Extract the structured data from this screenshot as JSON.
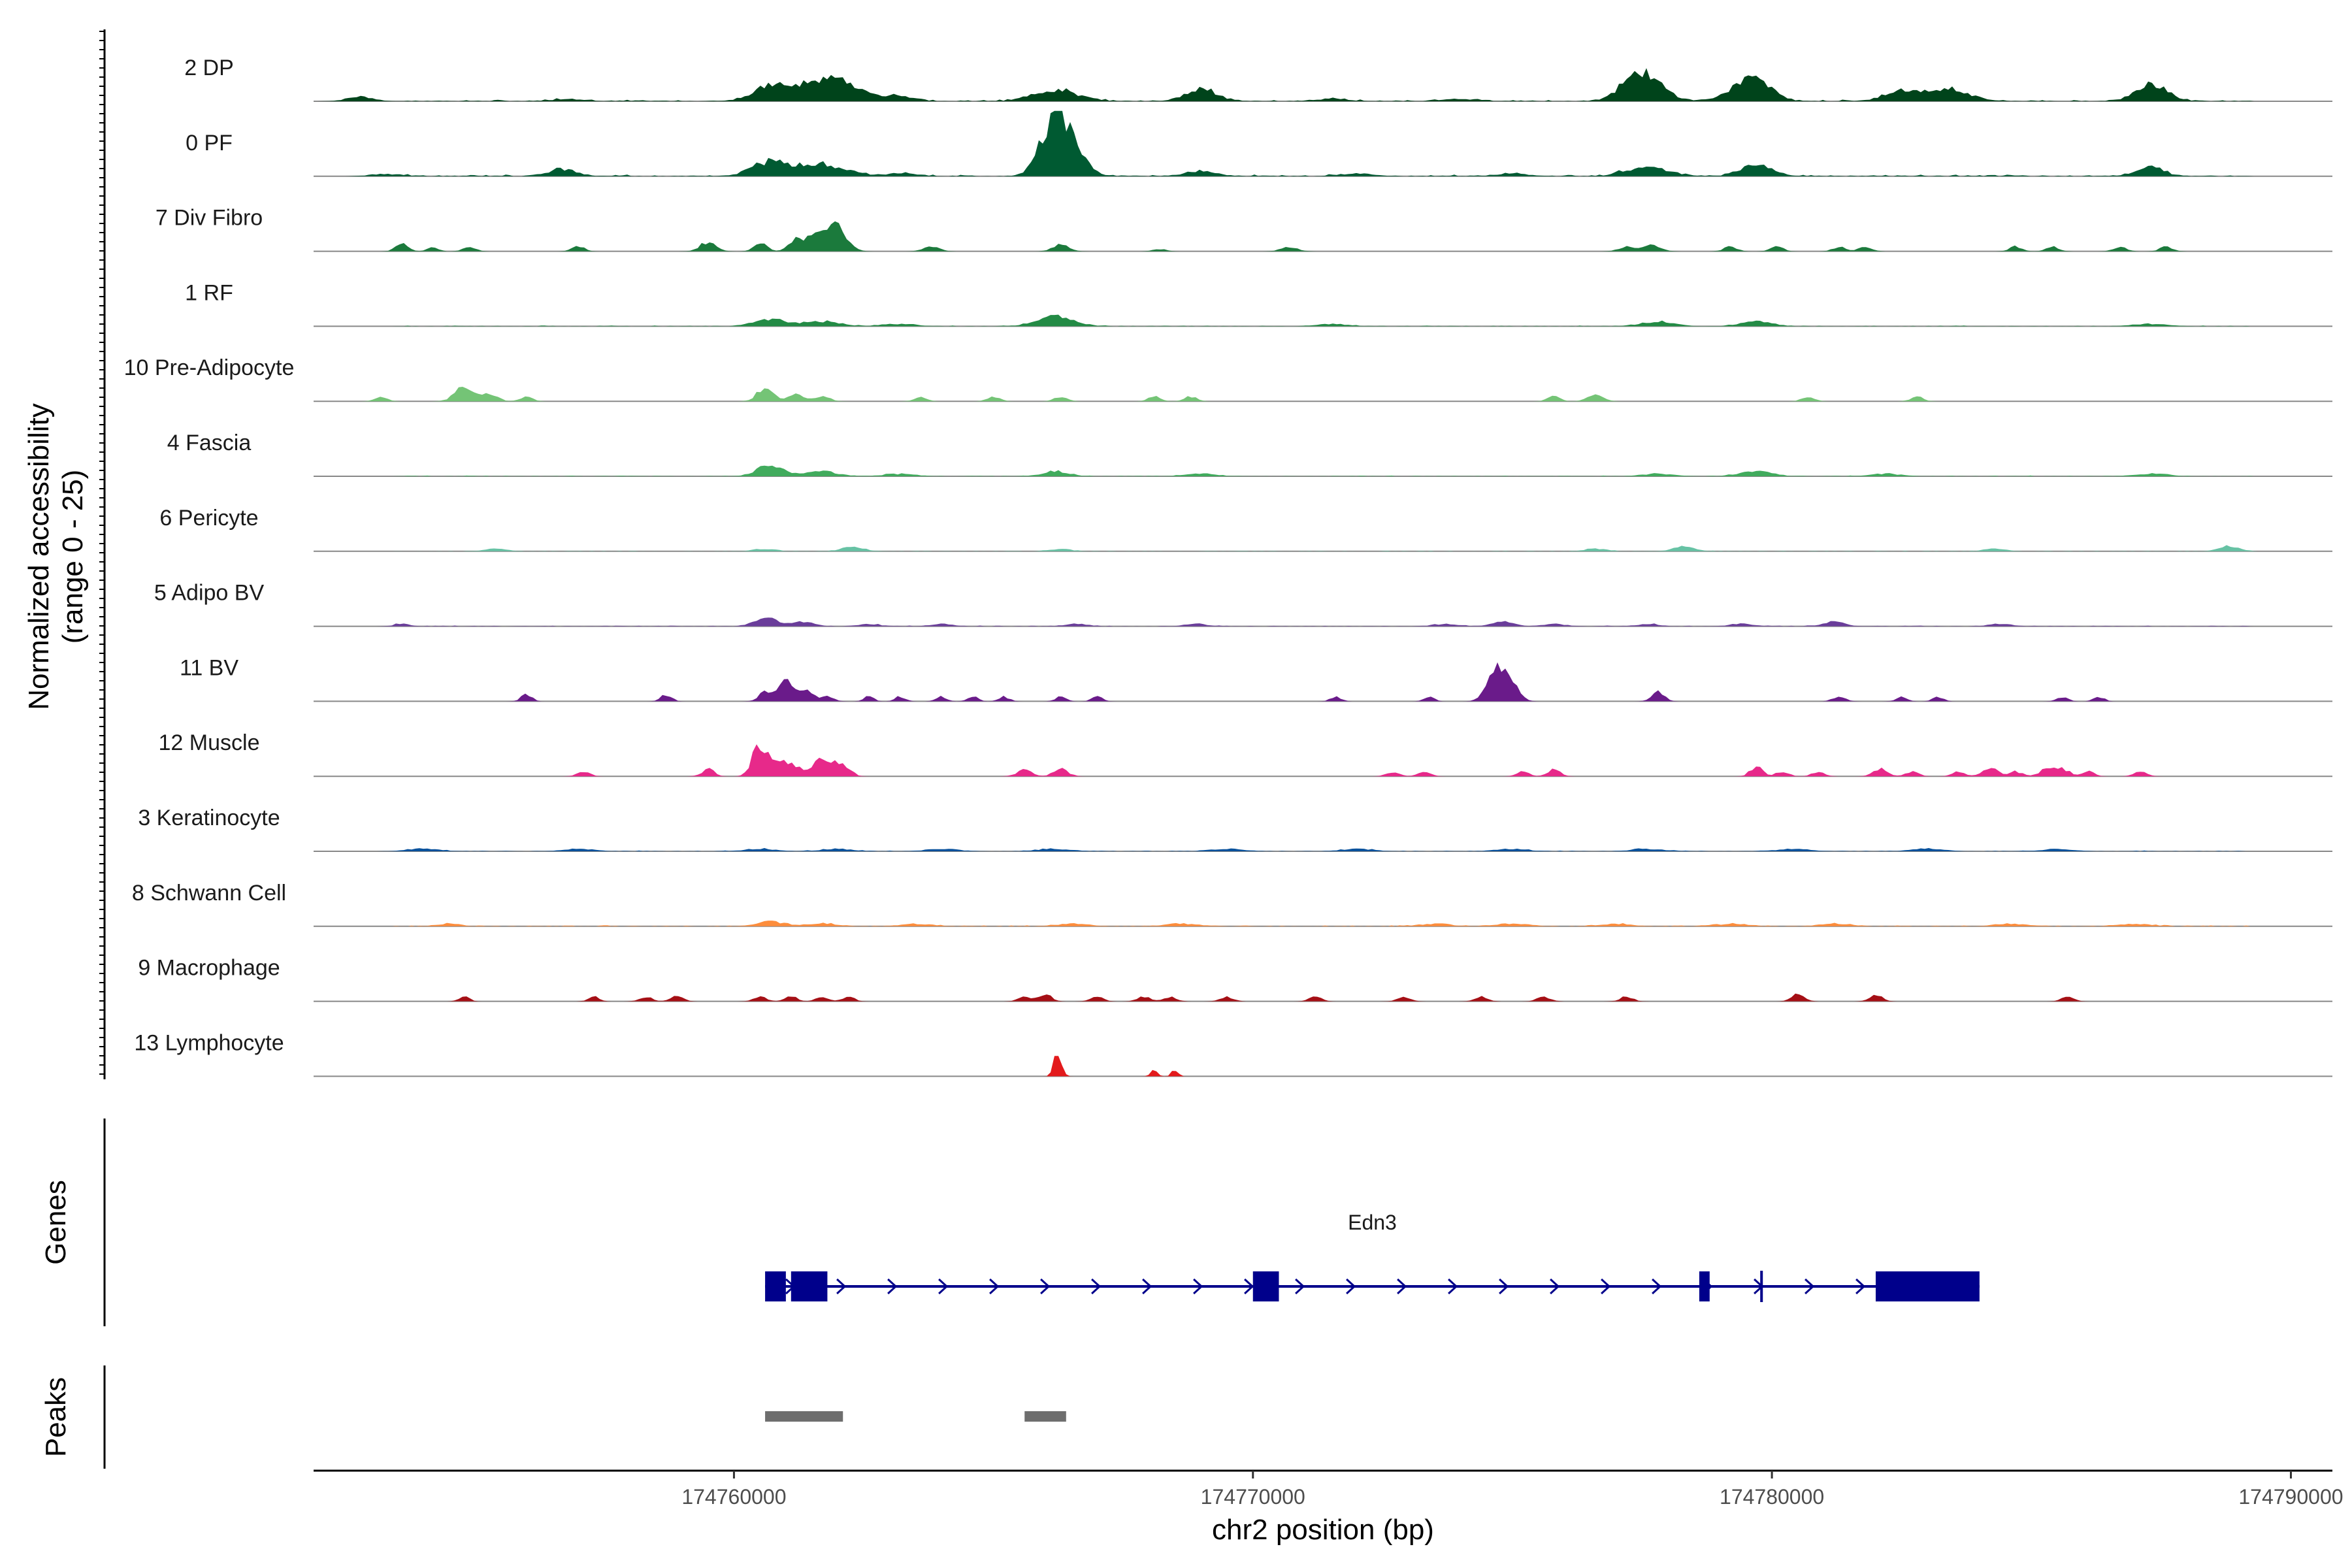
{
  "chart_data": {
    "type": "area",
    "title": "",
    "ylabel": "Normalized accessibility",
    "ylabel_range": "(range 0 - 25)",
    "ylim": [
      0,
      25
    ],
    "xlabel": "chr2 position (bp)",
    "xlim": [
      174751900,
      174790800
    ],
    "xticks": [
      174760000,
      174770000,
      174780000,
      174790000
    ],
    "xtick_labels": [
      "174760000",
      "174770000",
      "174780000",
      "174790000"
    ],
    "tracks": [
      {
        "name": "2 DP",
        "color": "#00441b",
        "peaks": [
          [
            174752800,
            2,
            250
          ],
          [
            174756800,
            1,
            300
          ],
          [
            174760700,
            6,
            350
          ],
          [
            174761700,
            8,
            450
          ],
          [
            174762200,
            4,
            400
          ],
          [
            174763200,
            2,
            300
          ],
          [
            174766200,
            5,
            400
          ],
          [
            174769000,
            5,
            300
          ],
          [
            174771500,
            1,
            300
          ],
          [
            174774000,
            1,
            300
          ],
          [
            174777400,
            11,
            300
          ],
          [
            174777800,
            4,
            300
          ],
          [
            174779600,
            10,
            350
          ],
          [
            174782500,
            4,
            350
          ],
          [
            174783400,
            5,
            400
          ],
          [
            174787300,
            7,
            300
          ]
        ],
        "noise": 0.7
      },
      {
        "name": "0 PF",
        "color": "#005a32",
        "peaks": [
          [
            174753300,
            1,
            300
          ],
          [
            174756700,
            3,
            250
          ],
          [
            174760700,
            6,
            350
          ],
          [
            174761700,
            5,
            450
          ],
          [
            174763200,
            1,
            300
          ],
          [
            174766100,
            14,
            250
          ],
          [
            174766400,
            18,
            280
          ],
          [
            174769000,
            2,
            300
          ],
          [
            174772000,
            1,
            300
          ],
          [
            174775000,
            1,
            300
          ],
          [
            174777300,
            2,
            300
          ],
          [
            174777800,
            3,
            300
          ],
          [
            174779700,
            5,
            300
          ],
          [
            174787300,
            4,
            250
          ]
        ],
        "noise": 0.8
      },
      {
        "name": "7 Div Fibro",
        "color": "#1b7a3c",
        "peaks": [
          [
            174753600,
            3,
            120
          ],
          [
            174754200,
            2,
            100
          ],
          [
            174754900,
            2,
            120
          ],
          [
            174757000,
            2,
            120
          ],
          [
            174759500,
            4,
            150
          ],
          [
            174760500,
            4,
            120
          ],
          [
            174761200,
            5,
            150
          ],
          [
            174761600,
            6,
            200
          ],
          [
            174762000,
            10,
            180
          ],
          [
            174763800,
            2,
            150
          ],
          [
            174766300,
            3,
            150
          ],
          [
            174768200,
            1,
            120
          ],
          [
            174770700,
            2,
            150
          ],
          [
            174777200,
            2,
            150
          ],
          [
            174777700,
            3,
            150
          ],
          [
            174779200,
            2,
            120
          ],
          [
            174780100,
            2,
            120
          ],
          [
            174781300,
            2,
            120
          ],
          [
            174781800,
            2,
            120
          ],
          [
            174784700,
            2,
            120
          ],
          [
            174785400,
            2,
            120
          ],
          [
            174786700,
            2,
            120
          ],
          [
            174787600,
            2,
            120
          ]
        ],
        "noise": 0.0
      },
      {
        "name": "1 RF",
        "color": "#238b45",
        "peaks": [
          [
            174760700,
            3,
            300
          ],
          [
            174761700,
            2,
            350
          ],
          [
            174763200,
            1,
            300
          ],
          [
            174766200,
            4,
            350
          ],
          [
            174771500,
            1,
            300
          ],
          [
            174777800,
            2,
            300
          ],
          [
            174779700,
            2,
            300
          ],
          [
            174787300,
            1,
            300
          ]
        ],
        "noise": 0.35
      },
      {
        "name": "10 Pre-Adipocyte",
        "color": "#74c476",
        "peaks": [
          [
            174753200,
            2,
            120
          ],
          [
            174754800,
            6,
            180
          ],
          [
            174755300,
            3,
            150
          ],
          [
            174756000,
            2,
            120
          ],
          [
            174760600,
            6,
            150
          ],
          [
            174761200,
            3,
            150
          ],
          [
            174761700,
            2,
            150
          ],
          [
            174763600,
            2,
            120
          ],
          [
            174765000,
            2,
            120
          ],
          [
            174766300,
            2,
            120
          ],
          [
            174768100,
            2,
            120
          ],
          [
            174768800,
            2,
            120
          ],
          [
            174775800,
            2,
            120
          ],
          [
            174776600,
            3,
            150
          ],
          [
            174780700,
            2,
            120
          ],
          [
            174782800,
            2,
            120
          ]
        ],
        "noise": 0.0
      },
      {
        "name": "4 Fascia",
        "color": "#41ab5d",
        "peaks": [
          [
            174760700,
            5,
            250
          ],
          [
            174761700,
            2,
            300
          ],
          [
            174763200,
            1,
            300
          ],
          [
            174766200,
            2,
            250
          ],
          [
            174769000,
            1,
            300
          ],
          [
            174777800,
            1,
            300
          ],
          [
            174779700,
            2,
            300
          ],
          [
            174782200,
            1,
            300
          ],
          [
            174787300,
            1,
            300
          ]
        ],
        "noise": 0.35
      },
      {
        "name": "6 Pericyte",
        "color": "#66c2a4",
        "peaks": [
          [
            174755400,
            1,
            200
          ],
          [
            174760600,
            1,
            200
          ],
          [
            174762300,
            2,
            200
          ],
          [
            174766300,
            1,
            200
          ],
          [
            174776600,
            1,
            200
          ],
          [
            174778300,
            2,
            200
          ],
          [
            174784300,
            1,
            200
          ],
          [
            174788800,
            2,
            200
          ]
        ],
        "noise": 0.25
      },
      {
        "name": "5 Adipo BV",
        "color": "#6a3d9a",
        "peaks": [
          [
            174753600,
            1,
            150
          ],
          [
            174760600,
            4,
            200
          ],
          [
            174761300,
            2,
            200
          ],
          [
            174762600,
            1,
            200
          ],
          [
            174764000,
            1,
            200
          ],
          [
            174766600,
            1,
            200
          ],
          [
            174768900,
            1,
            200
          ],
          [
            174773700,
            1,
            200
          ],
          [
            174774800,
            2,
            200
          ],
          [
            174775800,
            1,
            200
          ],
          [
            174777600,
            1,
            200
          ],
          [
            174779400,
            1,
            200
          ],
          [
            174781200,
            2,
            200
          ],
          [
            174784400,
            1,
            200
          ]
        ],
        "noise": 0.35
      },
      {
        "name": "11 BV",
        "color": "#6a1b8a",
        "peaks": [
          [
            174756000,
            3,
            100
          ],
          [
            174758700,
            3,
            100
          ],
          [
            174760600,
            4,
            120
          ],
          [
            174761000,
            8,
            160
          ],
          [
            174761400,
            4,
            140
          ],
          [
            174761800,
            2,
            120
          ],
          [
            174762600,
            2,
            100
          ],
          [
            174763200,
            2,
            100
          ],
          [
            174764000,
            2,
            100
          ],
          [
            174764600,
            2,
            100
          ],
          [
            174765200,
            2,
            100
          ],
          [
            174766300,
            2,
            100
          ],
          [
            174767000,
            2,
            100
          ],
          [
            174771600,
            2,
            100
          ],
          [
            174773400,
            2,
            100
          ],
          [
            174774700,
            13,
            180
          ],
          [
            174775000,
            6,
            150
          ],
          [
            174777800,
            4,
            120
          ],
          [
            174781300,
            2,
            120
          ],
          [
            174782500,
            2,
            100
          ],
          [
            174783200,
            2,
            100
          ],
          [
            174785600,
            2,
            100
          ],
          [
            174786300,
            2,
            100
          ]
        ],
        "noise": 0.0
      },
      {
        "name": "12 Muscle",
        "color": "#e7298a",
        "peaks": [
          [
            174757100,
            2,
            120
          ],
          [
            174759500,
            3,
            120
          ],
          [
            174760500,
            14,
            140
          ],
          [
            174760900,
            6,
            160
          ],
          [
            174761200,
            3,
            120
          ],
          [
            174761700,
            7,
            200
          ],
          [
            174762100,
            4,
            150
          ],
          [
            174765600,
            3,
            140
          ],
          [
            174766300,
            3,
            140
          ],
          [
            174772700,
            2,
            120
          ],
          [
            174773300,
            2,
            120
          ],
          [
            174775200,
            2,
            120
          ],
          [
            174775800,
            3,
            120
          ],
          [
            174779700,
            4,
            120
          ],
          [
            174780200,
            2,
            120
          ],
          [
            174780900,
            2,
            120
          ],
          [
            174782100,
            3,
            140
          ],
          [
            174782700,
            2,
            120
          ],
          [
            174783600,
            2,
            120
          ],
          [
            174784200,
            4,
            140
          ],
          [
            174784700,
            2,
            120
          ],
          [
            174785300,
            3,
            140
          ],
          [
            174785600,
            3,
            140
          ],
          [
            174786100,
            2,
            120
          ],
          [
            174787100,
            2,
            120
          ]
        ],
        "noise": 0.0
      },
      {
        "name": "3 Keratinocyte",
        "color": "#08519c",
        "peaks": [
          [
            174754000,
            1,
            300
          ],
          [
            174757000,
            1,
            300
          ],
          [
            174760500,
            1,
            300
          ],
          [
            174762000,
            1,
            300
          ],
          [
            174764000,
            1,
            300
          ],
          [
            174766200,
            1,
            300
          ],
          [
            174769500,
            1,
            300
          ],
          [
            174772000,
            1,
            300
          ],
          [
            174775000,
            1,
            300
          ],
          [
            174777600,
            1,
            300
          ],
          [
            174780400,
            1,
            300
          ],
          [
            174783000,
            1,
            300
          ],
          [
            174785500,
            1,
            300
          ]
        ],
        "noise": 0.35
      },
      {
        "name": "8 Schwann Cell",
        "color": "#fd8d3c",
        "peaks": [
          [
            174754500,
            1,
            200
          ],
          [
            174760700,
            2,
            250
          ],
          [
            174761700,
            1,
            300
          ],
          [
            174763500,
            1,
            300
          ],
          [
            174766500,
            1,
            300
          ],
          [
            174768600,
            1,
            300
          ],
          [
            174773500,
            1,
            300
          ],
          [
            174775000,
            1,
            300
          ],
          [
            174777000,
            1,
            300
          ],
          [
            174779200,
            1,
            300
          ],
          [
            174781200,
            1,
            300
          ],
          [
            174784600,
            1,
            300
          ],
          [
            174787000,
            1,
            300
          ]
        ],
        "noise": 0.45
      },
      {
        "name": "9 Macrophage",
        "color": "#a50f15",
        "peaks": [
          [
            174754800,
            2,
            100
          ],
          [
            174757300,
            2,
            100
          ],
          [
            174758300,
            2,
            120
          ],
          [
            174758900,
            2,
            120
          ],
          [
            174760500,
            2,
            120
          ],
          [
            174761100,
            2,
            120
          ],
          [
            174761700,
            2,
            120
          ],
          [
            174762200,
            2,
            120
          ],
          [
            174765600,
            2,
            120
          ],
          [
            174766000,
            3,
            120
          ],
          [
            174767000,
            2,
            120
          ],
          [
            174767900,
            2,
            120
          ],
          [
            174768400,
            2,
            120
          ],
          [
            174769500,
            2,
            120
          ],
          [
            174771200,
            2,
            120
          ],
          [
            174772900,
            2,
            120
          ],
          [
            174774400,
            2,
            120
          ],
          [
            174775600,
            2,
            120
          ],
          [
            174777200,
            2,
            120
          ],
          [
            174780500,
            3,
            120
          ],
          [
            174782000,
            3,
            120
          ],
          [
            174785700,
            2,
            120
          ]
        ],
        "noise": 0.0
      },
      {
        "name": "13 Lymphocyte",
        "color": "#e31a1c",
        "peaks": [
          [
            174766200,
            8,
            60
          ],
          [
            174766300,
            4,
            60
          ],
          [
            174768100,
            3,
            60
          ],
          [
            174768500,
            3,
            60
          ]
        ],
        "noise": 0.0
      }
    ],
    "genes": [
      {
        "name": "Edn3",
        "start": 174760600,
        "end": 174784000,
        "strand": "+",
        "exons": [
          [
            174760600,
            174761000
          ],
          [
            174761100,
            174761800
          ],
          [
            174770000,
            174770500
          ],
          [
            174778600,
            174778800
          ],
          [
            174782000,
            174784000
          ]
        ]
      }
    ],
    "peaks": [
      [
        174760600,
        174762100
      ],
      [
        174765600,
        174766400
      ]
    ],
    "genes_label": "Genes",
    "peaks_label": "Peaks"
  }
}
